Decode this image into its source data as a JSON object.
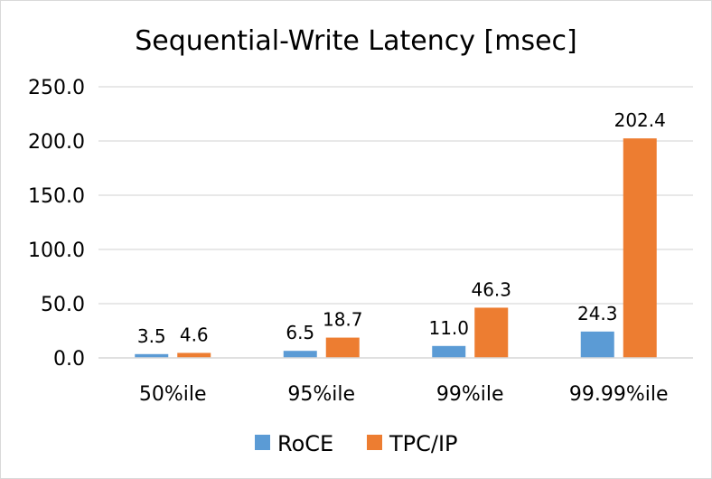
{
  "chart_data": {
    "type": "bar",
    "title": "Sequential-Write Latency [msec]",
    "xlabel": "",
    "ylabel": "",
    "categories": [
      "50%ile",
      "95%ile",
      "99%ile",
      "99.99%ile"
    ],
    "series": [
      {
        "name": "RoCE",
        "values": [
          3.5,
          6.5,
          11.0,
          24.3
        ],
        "labels": [
          "3.5",
          "6.5",
          "11.0",
          "24.3"
        ],
        "color": "#5b9bd5"
      },
      {
        "name": "TPC/IP",
        "values": [
          4.6,
          18.7,
          46.3,
          202.4
        ],
        "labels": [
          "4.6",
          "18.7",
          "46.3",
          "202.4"
        ],
        "color": "#ed7d31"
      }
    ],
    "ylim": [
      0,
      250
    ],
    "yticks": [
      0,
      50,
      100,
      150,
      200,
      250
    ],
    "ytick_labels": [
      "0.0",
      "50.0",
      "100.0",
      "150.0",
      "200.0",
      "250.0"
    ],
    "grid": true,
    "legend": "bottom",
    "gridline_color": "#d9d9d9"
  }
}
